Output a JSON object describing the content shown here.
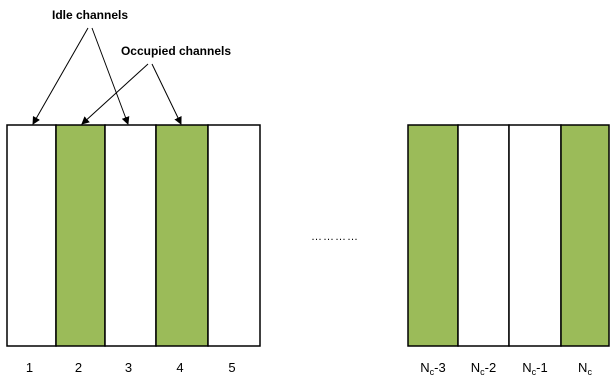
{
  "annotations": {
    "idle": "Idle channels",
    "occupied": "Occupied channels"
  },
  "ellipsis": "…………",
  "colors": {
    "occupied": "#9bbb59",
    "idle": "#ffffff",
    "stroke": "#000000"
  },
  "channels_left": [
    {
      "index": "1",
      "state": "idle"
    },
    {
      "index": "2",
      "state": "occupied"
    },
    {
      "index": "3",
      "state": "idle"
    },
    {
      "index": "4",
      "state": "occupied"
    },
    {
      "index": "5",
      "state": "idle"
    }
  ],
  "channels_right": [
    {
      "index_main": "N",
      "index_sub": "c",
      "index_suffix": "-3",
      "state": "occupied"
    },
    {
      "index_main": "N",
      "index_sub": "c",
      "index_suffix": "-2",
      "state": "idle"
    },
    {
      "index_main": "N",
      "index_sub": "c",
      "index_suffix": "-1",
      "state": "idle"
    },
    {
      "index_main": "N",
      "index_sub": "c",
      "index_suffix": "",
      "state": "occupied"
    }
  ]
}
